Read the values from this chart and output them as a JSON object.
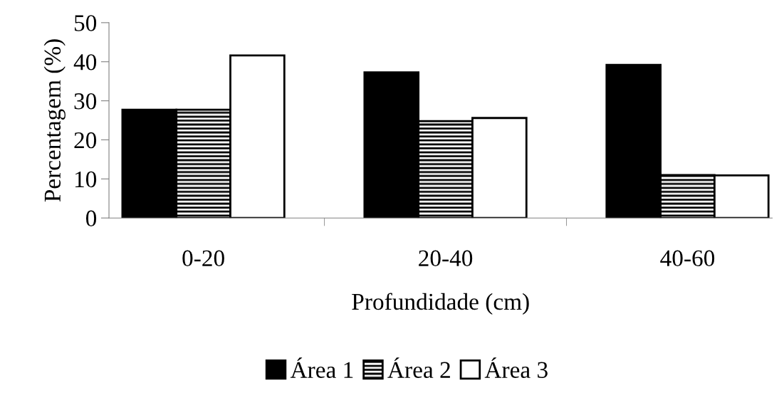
{
  "chart_data": {
    "type": "bar",
    "xlabel": "Profundidade (cm)",
    "ylabel": "Percentagem (%)",
    "categories": [
      "0-20",
      "20-40",
      "40-60"
    ],
    "series": [
      {
        "name": "Área 1",
        "color": "#000000",
        "values": [
          27.7,
          37.3,
          39.2
        ]
      },
      {
        "name": "Área 2",
        "color": "#000000",
        "values": [
          27.7,
          24.8,
          11.0
        ]
      },
      {
        "name": "Área 3",
        "color": "#ffffff",
        "values": [
          41.6,
          25.6,
          10.9
        ]
      }
    ],
    "ylim": [
      0,
      50
    ],
    "yticks": [
      0,
      10,
      20,
      30,
      40,
      50
    ],
    "grid": false,
    "legend": "bottom"
  }
}
